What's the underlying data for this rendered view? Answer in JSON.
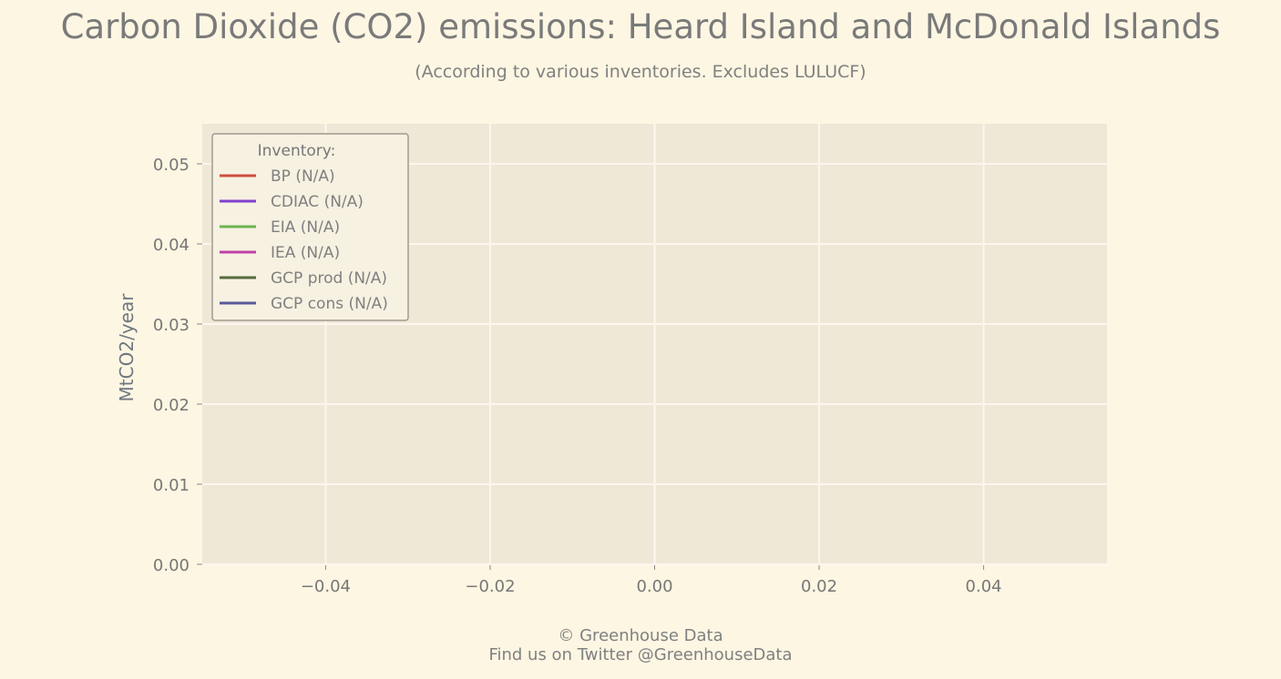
{
  "chart_data": {
    "type": "line",
    "title": "Carbon Dioxide (CO2) emissions: Heard Island and McDonald Islands",
    "subtitle": "(According to various inventories. Excludes LULUCF)",
    "xlabel": "",
    "ylabel": "MtCO2/year",
    "xlim": [
      -0.055,
      0.055
    ],
    "ylim": [
      0.0,
      0.055
    ],
    "x_ticks": [
      "-0.04",
      "-0.02",
      "0.00",
      "0.02",
      "0.04"
    ],
    "y_ticks": [
      "0.00",
      "0.01",
      "0.02",
      "0.03",
      "0.04",
      "0.05"
    ],
    "grid": true,
    "legend": {
      "title": "Inventory:",
      "position": "top-left"
    },
    "series": [
      {
        "name": "BP (N/A)",
        "color": "#cc4f3f",
        "values": []
      },
      {
        "name": "CDIAC (N/A)",
        "color": "#8040cc",
        "values": []
      },
      {
        "name": "EIA (N/A)",
        "color": "#6cb34f",
        "values": []
      },
      {
        "name": "IEA (N/A)",
        "color": "#c040a8",
        "values": []
      },
      {
        "name": "GCP prod (N/A)",
        "color": "#556b3f",
        "values": []
      },
      {
        "name": "GCP cons (N/A)",
        "color": "#5a5a9a",
        "values": []
      }
    ]
  },
  "footer": {
    "line1": "© Greenhouse Data",
    "line2": "Find us on Twitter @GreenhouseData"
  },
  "colors": {
    "background": "#fdf6e3",
    "plot_background": "#efe8d7",
    "grid": "#fbf7ee"
  }
}
